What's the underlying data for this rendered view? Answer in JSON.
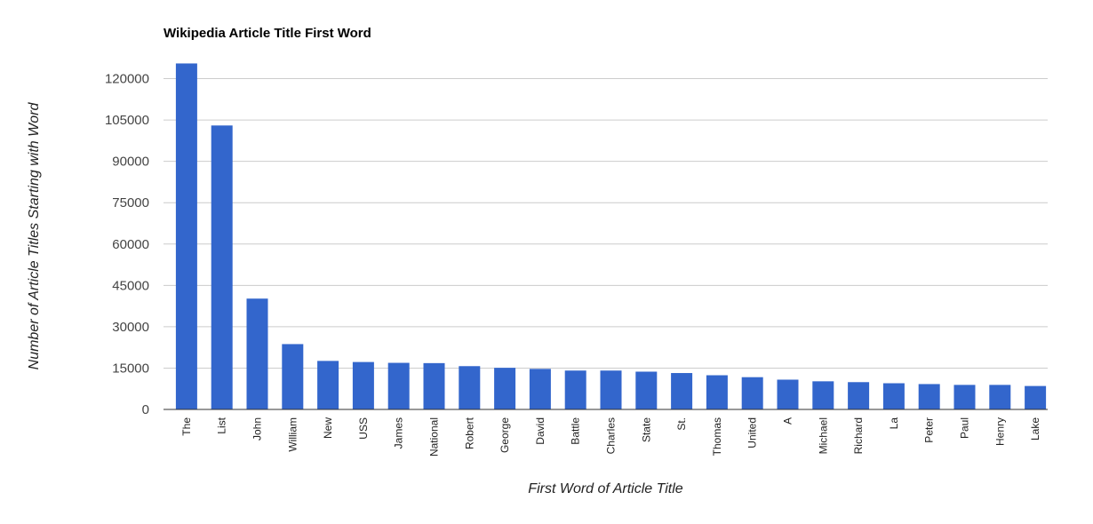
{
  "chart_data": {
    "type": "bar",
    "title": "Wikipedia Article Title First Word",
    "xlabel": "First Word of Article Title",
    "ylabel": "Number of Article Titles Starting with Word",
    "ylim": [
      0,
      125000
    ],
    "yticks": [
      0,
      15000,
      30000,
      45000,
      60000,
      75000,
      90000,
      105000,
      120000
    ],
    "grid": true,
    "bar_color": "#3366cc",
    "categories": [
      "The",
      "List",
      "John",
      "William",
      "New",
      "USS",
      "James",
      "National",
      "Robert",
      "George",
      "David",
      "Battle",
      "Charles",
      "State",
      "St.",
      "Thomas",
      "United",
      "A",
      "Michael",
      "Richard",
      "La",
      "Peter",
      "Paul",
      "Henry",
      "Lake"
    ],
    "values": [
      125500,
      103000,
      40200,
      23700,
      17600,
      17200,
      16900,
      16800,
      15700,
      15100,
      14700,
      14100,
      14100,
      13700,
      13200,
      12400,
      11700,
      10800,
      10200,
      9900,
      9500,
      9200,
      8900,
      8900,
      8500
    ]
  }
}
